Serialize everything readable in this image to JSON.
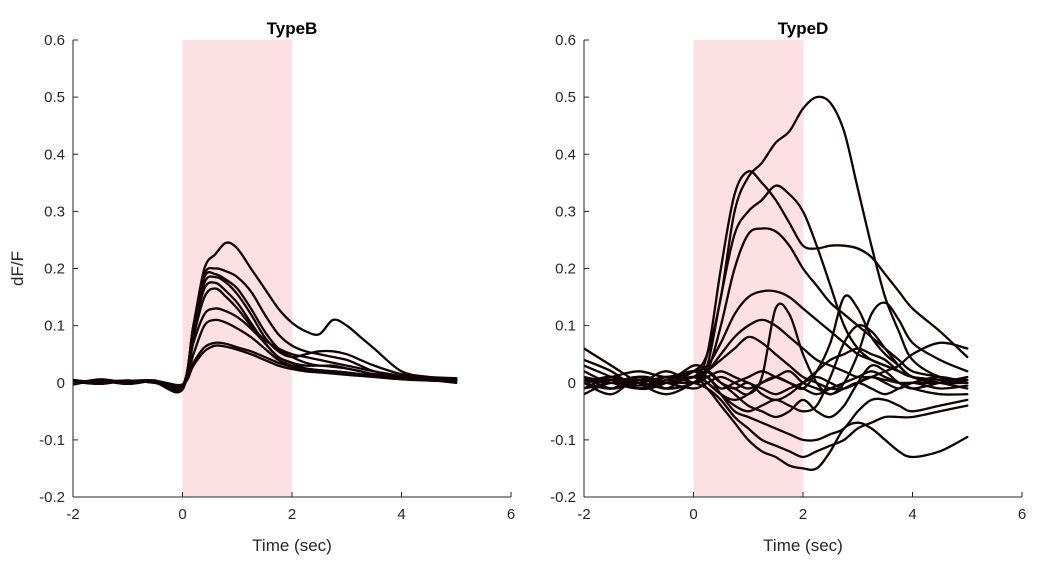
{
  "chart_data": [
    {
      "type": "line",
      "title": "TypeB",
      "xlabel": "Time (sec)",
      "ylabel": "dF/F",
      "xlim": [
        -2,
        6
      ],
      "ylim": [
        -0.2,
        0.6
      ],
      "xticks": [
        -2,
        0,
        2,
        4,
        6
      ],
      "yticks": [
        -0.2,
        -0.1,
        0,
        0.1,
        0.2,
        0.3,
        0.4,
        0.5,
        0.6
      ],
      "xtick_labels": [
        "-2",
        "0",
        "2",
        "4",
        "6"
      ],
      "ytick_labels": [
        "-0.2",
        "-0.1",
        "0",
        "0.1",
        "0.2",
        "0.3",
        "0.4",
        "0.5",
        "0.6"
      ],
      "shaded_region": {
        "x": [
          0,
          2
        ],
        "color": "#fde0e4"
      },
      "line_color": "#120404",
      "x": [
        -2,
        -1.5,
        -1,
        -0.5,
        0,
        0.2,
        0.4,
        0.6,
        0.8,
        1,
        1.25,
        1.5,
        1.75,
        2,
        2.25,
        2.5,
        2.75,
        3,
        3.25,
        3.5,
        4,
        4.5,
        5
      ],
      "series": [
        {
          "values": [
            0.003,
            0.001,
            0.004,
            0.0,
            -0.005,
            0.1,
            0.2,
            0.225,
            0.245,
            0.235,
            0.2,
            0.165,
            0.13,
            0.105,
            0.09,
            0.085,
            0.11,
            0.1,
            0.08,
            0.06,
            0.02,
            0.01,
            0.005
          ]
        },
        {
          "values": [
            0.002,
            0.0,
            0.002,
            0.003,
            -0.008,
            0.1,
            0.19,
            0.2,
            0.195,
            0.185,
            0.16,
            0.12,
            0.085,
            0.065,
            0.055,
            0.05,
            0.045,
            0.04,
            0.03,
            0.02,
            0.01,
            0.005,
            0.0
          ]
        },
        {
          "values": [
            0.0,
            0.004,
            -0.002,
            0.004,
            -0.01,
            0.1,
            0.185,
            0.19,
            0.18,
            0.165,
            0.13,
            0.09,
            0.06,
            0.045,
            0.035,
            0.03,
            0.03,
            0.025,
            0.02,
            0.015,
            0.01,
            0.008,
            0.005
          ]
        },
        {
          "values": [
            -0.002,
            0.006,
            0.0,
            0.002,
            -0.01,
            0.09,
            0.175,
            0.185,
            0.175,
            0.155,
            0.12,
            0.08,
            0.055,
            0.045,
            0.05,
            0.055,
            0.055,
            0.05,
            0.04,
            0.03,
            0.015,
            0.01,
            0.008
          ]
        },
        {
          "values": [
            0.004,
            0.002,
            0.004,
            0.0,
            -0.012,
            0.09,
            0.165,
            0.175,
            0.16,
            0.14,
            0.105,
            0.07,
            0.045,
            0.035,
            0.03,
            0.03,
            0.028,
            0.025,
            0.02,
            0.015,
            0.01,
            0.005,
            0.004
          ]
        },
        {
          "values": [
            0.0,
            0.001,
            0.003,
            0.004,
            -0.008,
            0.08,
            0.15,
            0.165,
            0.15,
            0.13,
            0.1,
            0.075,
            0.06,
            0.05,
            0.045,
            0.04,
            0.035,
            0.03,
            0.025,
            0.02,
            0.012,
            0.008,
            0.006
          ]
        },
        {
          "values": [
            0.005,
            0.0,
            0.002,
            0.001,
            -0.006,
            0.07,
            0.12,
            0.13,
            0.125,
            0.115,
            0.095,
            0.07,
            0.045,
            0.035,
            0.025,
            0.022,
            0.02,
            0.018,
            0.015,
            0.012,
            0.008,
            0.006,
            0.005
          ]
        },
        {
          "values": [
            -0.003,
            0.004,
            0.0,
            0.003,
            -0.005,
            0.05,
            0.1,
            0.11,
            0.105,
            0.095,
            0.08,
            0.06,
            0.04,
            0.03,
            0.025,
            0.022,
            0.02,
            0.018,
            0.015,
            0.012,
            0.008,
            0.004,
            0.003
          ]
        },
        {
          "values": [
            0.002,
            -0.002,
            0.004,
            0.0,
            -0.004,
            0.035,
            0.062,
            0.07,
            0.068,
            0.062,
            0.055,
            0.045,
            0.035,
            0.028,
            0.022,
            0.02,
            0.018,
            0.016,
            0.014,
            0.012,
            0.008,
            0.006,
            0.005
          ]
        },
        {
          "values": [
            0.001,
            0.003,
            -0.002,
            0.003,
            -0.003,
            0.03,
            0.055,
            0.065,
            0.063,
            0.058,
            0.05,
            0.04,
            0.03,
            0.024,
            0.02,
            0.018,
            0.016,
            0.014,
            0.012,
            0.01,
            0.006,
            0.004,
            0.003
          ]
        }
      ]
    },
    {
      "type": "line",
      "title": "TypeD",
      "xlabel": "Time (sec)",
      "ylabel": "",
      "xlim": [
        -2,
        6
      ],
      "ylim": [
        -0.2,
        0.6
      ],
      "xticks": [
        -2,
        0,
        2,
        4,
        6
      ],
      "yticks": [
        -0.2,
        -0.1,
        0,
        0.1,
        0.2,
        0.3,
        0.4,
        0.5,
        0.6
      ],
      "xtick_labels": [
        "-2",
        "0",
        "2",
        "4",
        "6"
      ],
      "ytick_labels": [
        "-0.2",
        "-0.1",
        "0",
        "0.1",
        "0.2",
        "0.3",
        "0.4",
        "0.5",
        "0.6"
      ],
      "shaded_region": {
        "x": [
          0,
          2
        ],
        "color": "#fde0e4"
      },
      "line_color": "#120404",
      "x": [
        -2,
        -1.5,
        -1,
        -0.5,
        0,
        0.25,
        0.5,
        0.75,
        1,
        1.25,
        1.5,
        1.75,
        2,
        2.25,
        2.5,
        2.75,
        3,
        3.25,
        3.5,
        3.75,
        4,
        4.5,
        5
      ],
      "series": [
        {
          "values": [
            0.005,
            0.0,
            0.01,
            0.0,
            0.02,
            0.05,
            0.15,
            0.3,
            0.36,
            0.385,
            0.42,
            0.44,
            0.48,
            0.5,
            0.49,
            0.44,
            0.34,
            0.24,
            0.15,
            0.09,
            0.04,
            0.01,
            0.005
          ]
        },
        {
          "values": [
            0.0,
            0.01,
            -0.01,
            0.01,
            0.01,
            0.05,
            0.2,
            0.33,
            0.37,
            0.35,
            0.32,
            0.28,
            0.24,
            0.235,
            0.24,
            0.24,
            0.235,
            0.22,
            0.19,
            0.16,
            0.13,
            0.09,
            0.045
          ]
        },
        {
          "values": [
            0.01,
            -0.01,
            0.0,
            -0.01,
            0.0,
            0.03,
            0.15,
            0.26,
            0.3,
            0.32,
            0.345,
            0.33,
            0.3,
            0.24,
            0.17,
            0.1,
            0.06,
            0.04,
            0.03,
            0.02,
            0.01,
            0.005,
            0.0
          ]
        },
        {
          "values": [
            -0.01,
            0.0,
            0.01,
            0.0,
            0.01,
            0.02,
            0.1,
            0.2,
            0.26,
            0.27,
            0.265,
            0.24,
            0.2,
            0.17,
            0.14,
            0.12,
            0.1,
            0.08,
            0.06,
            0.04,
            0.02,
            0.01,
            0.0
          ]
        },
        {
          "values": [
            0.0,
            0.005,
            -0.005,
            0.005,
            0.02,
            0.03,
            0.07,
            0.12,
            0.15,
            0.16,
            0.16,
            0.15,
            0.13,
            0.11,
            0.09,
            0.07,
            0.05,
            0.04,
            0.03,
            0.02,
            0.01,
            0.005,
            0.0
          ]
        },
        {
          "values": [
            0.005,
            0.0,
            0.005,
            0.0,
            0.01,
            0.02,
            0.05,
            0.08,
            0.1,
            0.11,
            0.1,
            0.08,
            0.06,
            0.04,
            0.03,
            0.02,
            0.01,
            0.01,
            0.005,
            0.0,
            0.0,
            0.0,
            0.0
          ]
        },
        {
          "values": [
            0.06,
            0.03,
            0.0,
            -0.02,
            0.0,
            0.02,
            0.04,
            0.06,
            0.08,
            0.07,
            0.05,
            0.03,
            0.01,
            0.0,
            -0.01,
            -0.01,
            0.0,
            0.01,
            0.02,
            0.03,
            0.05,
            0.07,
            0.06
          ]
        },
        {
          "values": [
            0.03,
            0.01,
            -0.01,
            0.0,
            0.01,
            0.02,
            0.0,
            -0.01,
            -0.02,
            0.01,
            0.13,
            0.12,
            0.05,
            0.0,
            -0.02,
            0.0,
            0.05,
            0.12,
            0.14,
            0.11,
            0.07,
            0.04,
            0.02
          ]
        },
        {
          "values": [
            0.0,
            0.01,
            0.02,
            0.01,
            0.02,
            0.0,
            -0.02,
            -0.03,
            -0.02,
            0.0,
            0.01,
            0.0,
            -0.01,
            0.02,
            0.07,
            0.15,
            0.13,
            0.08,
            0.05,
            0.03,
            0.01,
            0.0,
            -0.01
          ]
        },
        {
          "values": [
            -0.02,
            0.0,
            -0.01,
            0.0,
            0.01,
            0.0,
            -0.02,
            -0.04,
            -0.05,
            -0.04,
            -0.03,
            -0.04,
            -0.05,
            -0.04,
            0.01,
            0.07,
            0.1,
            0.09,
            0.06,
            0.03,
            0.01,
            0.0,
            0.0
          ]
        },
        {
          "values": [
            0.0,
            -0.01,
            0.01,
            -0.01,
            0.0,
            0.02,
            0.0,
            -0.02,
            -0.04,
            -0.05,
            -0.06,
            -0.05,
            -0.03,
            -0.05,
            -0.06,
            -0.04,
            0.0,
            0.03,
            0.02,
            0.0,
            -0.01,
            -0.02,
            -0.02
          ]
        },
        {
          "values": [
            0.01,
            0.0,
            -0.01,
            0.0,
            0.0,
            0.01,
            -0.02,
            -0.05,
            -0.06,
            -0.07,
            -0.08,
            -0.09,
            -0.1,
            -0.1,
            -0.09,
            -0.08,
            -0.05,
            -0.03,
            -0.03,
            -0.04,
            -0.05,
            -0.04,
            -0.03
          ]
        },
        {
          "values": [
            -0.01,
            0.01,
            0.0,
            0.01,
            0.0,
            -0.01,
            -0.03,
            -0.06,
            -0.08,
            -0.1,
            -0.11,
            -0.12,
            -0.13,
            -0.12,
            -0.11,
            -0.1,
            -0.08,
            -0.07,
            -0.06,
            -0.06,
            -0.06,
            -0.05,
            -0.04
          ]
        },
        {
          "values": [
            0.0,
            -0.01,
            0.01,
            0.0,
            0.01,
            -0.01,
            -0.04,
            -0.07,
            -0.1,
            -0.12,
            -0.13,
            -0.145,
            -0.15,
            -0.15,
            -0.12,
            -0.08,
            -0.07,
            -0.08,
            -0.1,
            -0.12,
            -0.13,
            -0.12,
            -0.095
          ]
        },
        {
          "values": [
            0.02,
            0.0,
            0.01,
            -0.01,
            0.02,
            0.01,
            -0.01,
            0.0,
            0.01,
            0.02,
            0.01,
            0.0,
            -0.01,
            -0.02,
            -0.01,
            0.0,
            0.01,
            0.02,
            0.01,
            0.0,
            -0.01,
            0.0,
            0.01
          ]
        },
        {
          "values": [
            -0.01,
            0.01,
            0.0,
            0.02,
            0.0,
            0.01,
            0.02,
            0.01,
            0.0,
            -0.01,
            -0.02,
            -0.01,
            0.0,
            0.01,
            0.0,
            -0.01,
            0.0,
            0.01,
            0.0,
            -0.01,
            0.0,
            0.01,
            0.0
          ]
        },
        {
          "values": [
            0.0,
            -0.02,
            0.01,
            0.0,
            -0.01,
            0.0,
            0.01,
            0.0,
            -0.01,
            0.0,
            0.01,
            0.02,
            0.0,
            -0.01,
            -0.02,
            -0.01,
            0.0,
            -0.01,
            -0.02,
            -0.01,
            0.0,
            -0.01,
            -0.005
          ]
        },
        {
          "values": [
            0.04,
            0.02,
            -0.01,
            0.0,
            0.03,
            0.02,
            0.0,
            -0.01,
            0.0,
            -0.02,
            -0.03,
            -0.02,
            0.0,
            0.02,
            0.04,
            0.05,
            0.06,
            0.05,
            0.04,
            0.02,
            0.01,
            0.0,
            0.005
          ]
        }
      ]
    }
  ]
}
